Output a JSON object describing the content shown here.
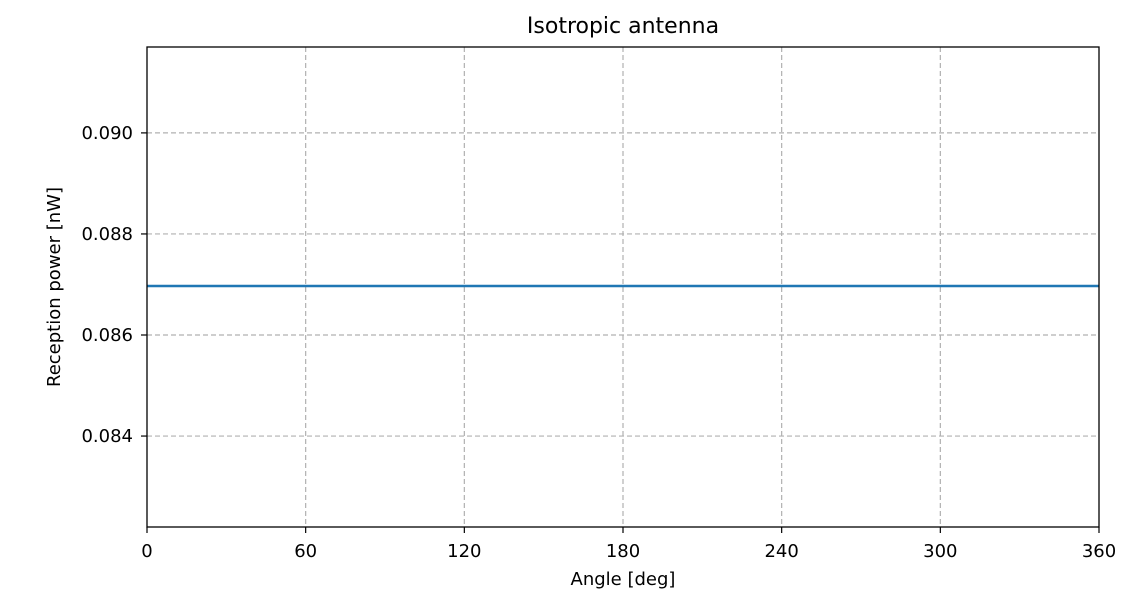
{
  "chart_data": {
    "type": "line",
    "title": "Isotropic antenna",
    "xlabel": "Angle [deg]",
    "ylabel": "Reception power [nW]",
    "xlim": [
      0,
      360
    ],
    "ylim": [
      0.0822,
      0.0917
    ],
    "x_ticks": [
      0,
      60,
      120,
      180,
      240,
      300,
      360
    ],
    "x_tick_labels": [
      "0",
      "60",
      "120",
      "180",
      "240",
      "300",
      "360"
    ],
    "y_ticks": [
      0.084,
      0.086,
      0.088,
      0.09
    ],
    "y_tick_labels": [
      "0.084",
      "0.086",
      "0.088",
      "0.090"
    ],
    "grid": true,
    "series": [
      {
        "color": "#1f77b4",
        "x": [
          0,
          360
        ],
        "y": [
          0.08697,
          0.08697
        ]
      }
    ]
  }
}
